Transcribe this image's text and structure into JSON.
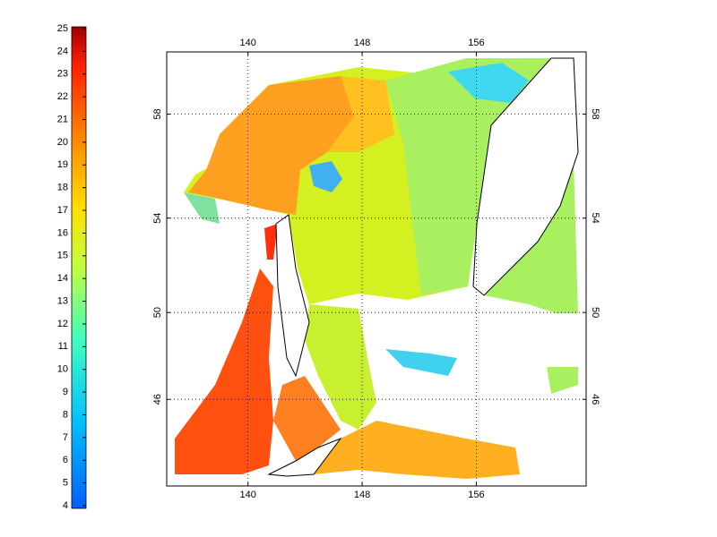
{
  "chart_data": {
    "type": "map",
    "projection": "mercator",
    "xlim": [
      134.3,
      163.7
    ],
    "xticks": [
      140,
      148,
      156
    ],
    "ylim": [
      41.7,
      60.2
    ],
    "yticks": [
      46,
      50,
      54,
      58
    ],
    "grid": true,
    "colorbar": {
      "clim": [
        4,
        25
      ],
      "ticks": [
        4,
        5,
        6,
        7,
        8,
        9,
        10,
        11,
        12,
        13,
        14,
        15,
        16,
        17,
        18,
        19,
        20,
        21,
        22,
        23,
        24,
        25
      ]
    }
  }
}
